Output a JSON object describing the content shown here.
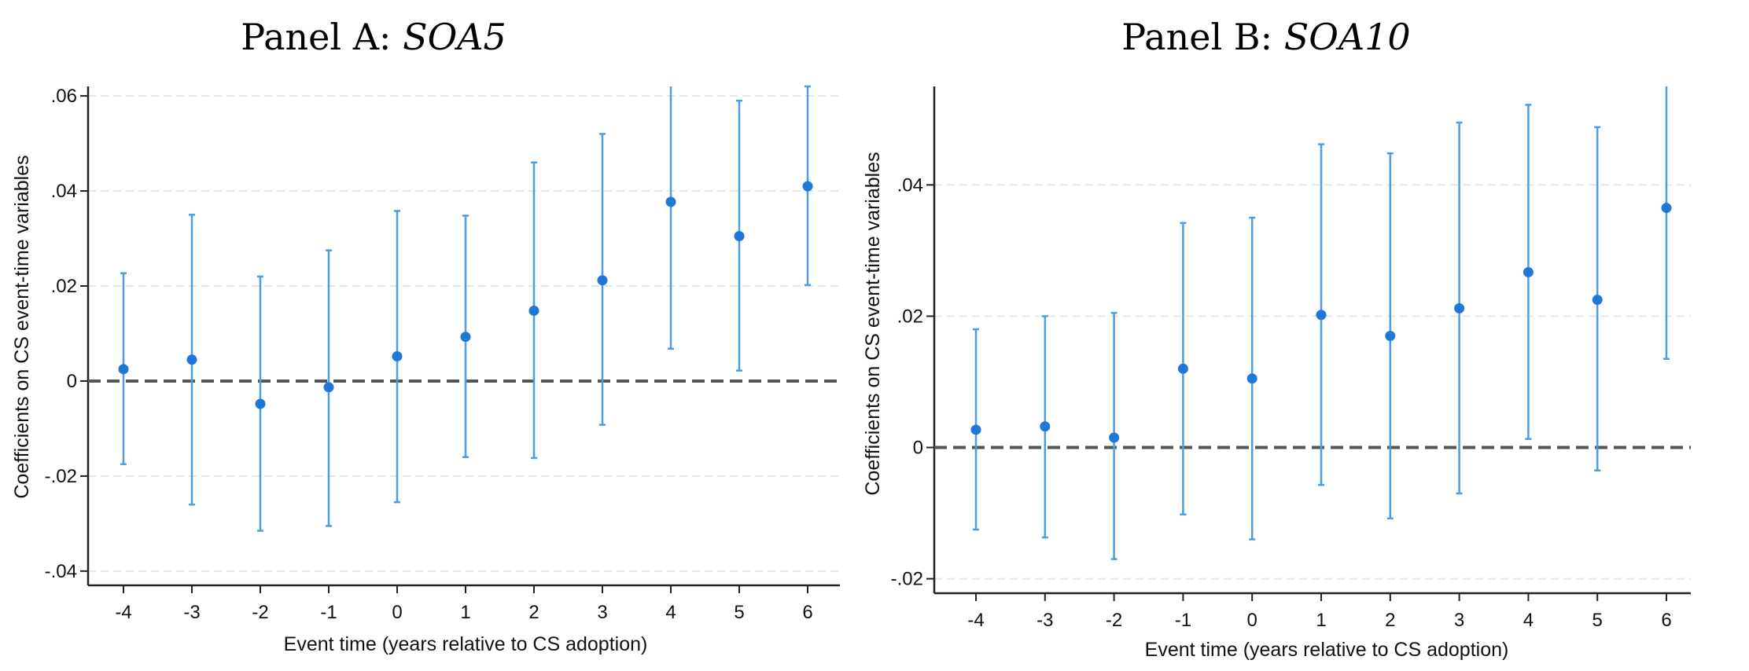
{
  "chart_data": [
    {
      "type": "scatter",
      "title_prefix": "Panel A: ",
      "title_var": "SOA5",
      "xlabel": "Event time (years relative to CS adoption)",
      "ylabel": "Coefficients on CS event-time variables",
      "categories": [
        "-4",
        "-3",
        "-2",
        "-1",
        "0",
        "1",
        "2",
        "3",
        "4",
        "5",
        "6"
      ],
      "ylim": [
        -0.043,
        0.062
      ],
      "yticks": [
        -0.04,
        -0.02,
        0,
        0.02,
        0.04,
        0.06
      ],
      "yticklabels": [
        "-.04",
        "-.02",
        "0",
        ".02",
        ".04",
        ".06"
      ],
      "grid": true,
      "reference_line": 0,
      "series": [
        {
          "values": [
            0.0025,
            0.0045,
            -0.0048,
            -0.0013,
            0.0052,
            0.0093,
            0.0148,
            0.0212,
            0.0377,
            0.0305,
            0.041
          ],
          "ci_low": [
            -0.0175,
            -0.026,
            -0.0315,
            -0.0305,
            -0.0255,
            -0.016,
            -0.0162,
            -0.0092,
            0.0068,
            0.0022,
            0.0202
          ],
          "ci_high": [
            0.0227,
            0.035,
            0.022,
            0.0275,
            0.0358,
            0.0348,
            0.046,
            0.052,
            0.0625,
            0.059,
            0.062
          ]
        }
      ],
      "colors": {
        "marker": "#1f78d8",
        "ci": "#4a9de6",
        "refline": "#555555",
        "grid": "#e6e6e6",
        "axis": "#222222"
      }
    },
    {
      "type": "scatter",
      "title_prefix": "Panel B: ",
      "title_var": "SOA10",
      "xlabel": "Event time (years relative to CS adoption)",
      "ylabel": "Coefficients on CS event-time variables",
      "categories": [
        "-4",
        "-3",
        "-2",
        "-1",
        "0",
        "1",
        "2",
        "3",
        "4",
        "5",
        "6"
      ],
      "ylim": [
        -0.0222,
        0.055
      ],
      "yticks": [
        -0.02,
        0,
        0.02,
        0.04
      ],
      "yticklabels": [
        "-.02",
        "0",
        ".02",
        ".04"
      ],
      "grid": true,
      "reference_line": 0,
      "series": [
        {
          "values": [
            0.0027,
            0.0032,
            0.0015,
            0.012,
            0.0105,
            0.0202,
            0.017,
            0.0212,
            0.0267,
            0.0225,
            0.0365
          ],
          "ci_low": [
            -0.0125,
            -0.0137,
            -0.017,
            -0.0102,
            -0.014,
            -0.0057,
            -0.0108,
            -0.007,
            0.0013,
            -0.0035,
            0.0135
          ],
          "ci_high": [
            0.018,
            0.02,
            0.0205,
            0.0342,
            0.035,
            0.0462,
            0.0448,
            0.0495,
            0.0522,
            0.0488,
            0.056
          ]
        }
      ],
      "colors": {
        "marker": "#1f78d8",
        "ci": "#4a9de6",
        "refline": "#555555",
        "grid": "#e6e6e6",
        "axis": "#222222"
      }
    }
  ]
}
